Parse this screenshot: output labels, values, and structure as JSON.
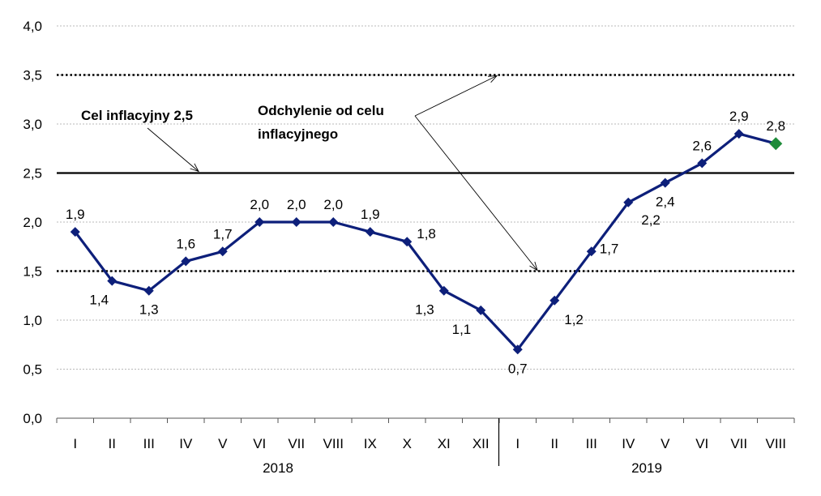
{
  "chart_data": {
    "type": "line",
    "title": "",
    "xlabel": "",
    "ylabel": "",
    "ylim": [
      0,
      4
    ],
    "y_ticks": [
      "0,0",
      "0,5",
      "1,0",
      "1,5",
      "2,0",
      "2,5",
      "3,0",
      "3,5",
      "4,0"
    ],
    "grid": true,
    "categories": [
      "I",
      "II",
      "III",
      "IV",
      "V",
      "VI",
      "VII",
      "VIII",
      "IX",
      "X",
      "XI",
      "XII",
      "I",
      "II",
      "III",
      "IV",
      "V",
      "VI",
      "VII",
      "VIII"
    ],
    "year_groups": [
      {
        "label": "2018",
        "from_index": 0,
        "to_index": 11
      },
      {
        "label": "2019",
        "from_index": 12,
        "to_index": 19
      }
    ],
    "series": [
      {
        "values": [
          1.9,
          1.4,
          1.3,
          1.6,
          1.7,
          2.0,
          2.0,
          2.0,
          1.9,
          1.8,
          1.3,
          1.1,
          0.7,
          1.2,
          1.7,
          2.2,
          2.4,
          2.6,
          2.9,
          2.8
        ],
        "value_labels": [
          "1,9",
          "1,4",
          "1,3",
          "1,6",
          "1,7",
          "2,0",
          "2,0",
          "2,0",
          "1,9",
          "1,8",
          "1,3",
          "1,1",
          "0,7",
          "1,2",
          "1,7",
          "2,2",
          "2,4",
          "2,6",
          "2,9",
          "2,8"
        ],
        "color": "#0d1f7a",
        "last_point_color": "#1e8c3a"
      }
    ],
    "reference_lines": [
      {
        "value": 2.5,
        "style": "solid"
      },
      {
        "value": 3.5,
        "style": "dotted"
      },
      {
        "value": 1.5,
        "style": "dotted"
      }
    ],
    "annotations": [
      {
        "text": "Cel inflacyjny 2,5",
        "target": "target-line"
      },
      {
        "text_lines": [
          "Odchylenie od celu",
          "inflacyjnego"
        ],
        "target": "tolerance-band"
      }
    ]
  }
}
